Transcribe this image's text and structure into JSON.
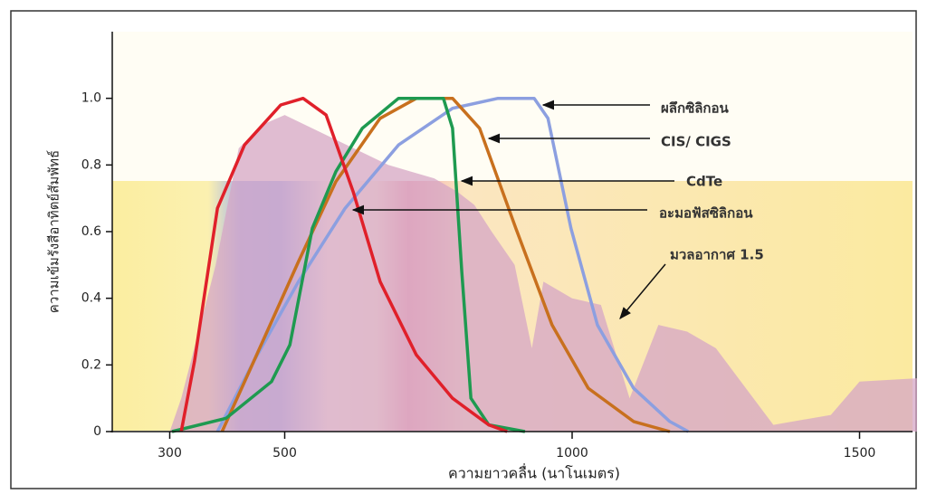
{
  "chart_data": {
    "type": "line",
    "xlabel": "ความยาวคลื่น (นาโนเมตร)",
    "ylabel": "ความเข้มรังสีอาทิตย์สัมพัทธ์",
    "xlim": [
      200,
      1600
    ],
    "xticks": [
      300,
      500,
      1000,
      1500
    ],
    "ylim": [
      0,
      1.2
    ],
    "yticks": [
      0,
      0.2,
      0.4,
      0.6,
      0.8,
      {
        "value": 1,
        "label": "1.0"
      }
    ],
    "series": [
      {
        "name": "มวลอากาศ 1.5",
        "color": "#d6a6c6",
        "area": true,
        "x": [
          300,
          320,
          350,
          380,
          420,
          460,
          500,
          560,
          620,
          680,
          720,
          760,
          800,
          830,
          860,
          900,
          930,
          950,
          1000,
          1050,
          1100,
          1150,
          1200,
          1250,
          1350,
          1450,
          1500,
          1600
        ],
        "values": [
          0,
          0.1,
          0.3,
          0.5,
          0.85,
          0.92,
          0.95,
          0.9,
          0.85,
          0.8,
          0.78,
          0.76,
          0.72,
          0.68,
          0.6,
          0.5,
          0.25,
          0.45,
          0.4,
          0.38,
          0.1,
          0.32,
          0.3,
          0.25,
          0.02,
          0.05,
          0.15,
          0.16
        ]
      },
      {
        "name": "ผลึกซิลิกอน",
        "color": "#8c9fe0",
        "x": [
          383,
          446,
          524,
          605,
          698,
          792,
          871,
          934,
          958,
          998,
          1044,
          1107,
          1170,
          1202
        ],
        "values": [
          0,
          0.21,
          0.45,
          0.67,
          0.86,
          0.97,
          1.0,
          1.0,
          0.94,
          0.61,
          0.32,
          0.13,
          0.03,
          0
        ]
      },
      {
        "name": "CIS/ CIGS",
        "color": "#c8701e",
        "x": [
          391,
          446,
          524,
          589,
          666,
          729,
          792,
          839,
          902,
          965,
          1028,
          1107,
          1170
        ],
        "values": [
          0,
          0.21,
          0.51,
          0.75,
          0.94,
          1.0,
          1.0,
          0.91,
          0.61,
          0.32,
          0.13,
          0.03,
          0
        ]
      },
      {
        "name": "CdTe",
        "color": "#1e9a50",
        "x": [
          304,
          398,
          477,
          509,
          548,
          589,
          635,
          698,
          776,
          792,
          808,
          824,
          855,
          918
        ],
        "values": [
          0,
          0.04,
          0.15,
          0.26,
          0.61,
          0.78,
          0.91,
          1.0,
          1.0,
          0.91,
          0.48,
          0.1,
          0.02,
          0
        ]
      },
      {
        "name": "อะมอฟัสซิลิกอน",
        "color": "#e0202a",
        "x": [
          320,
          343,
          383,
          430,
          493,
          532,
          572,
          619,
          666,
          729,
          792,
          855,
          887
        ],
        "values": [
          0,
          0.21,
          0.67,
          0.86,
          0.98,
          1.0,
          0.95,
          0.72,
          0.45,
          0.23,
          0.1,
          0.02,
          0
        ]
      }
    ]
  }
}
